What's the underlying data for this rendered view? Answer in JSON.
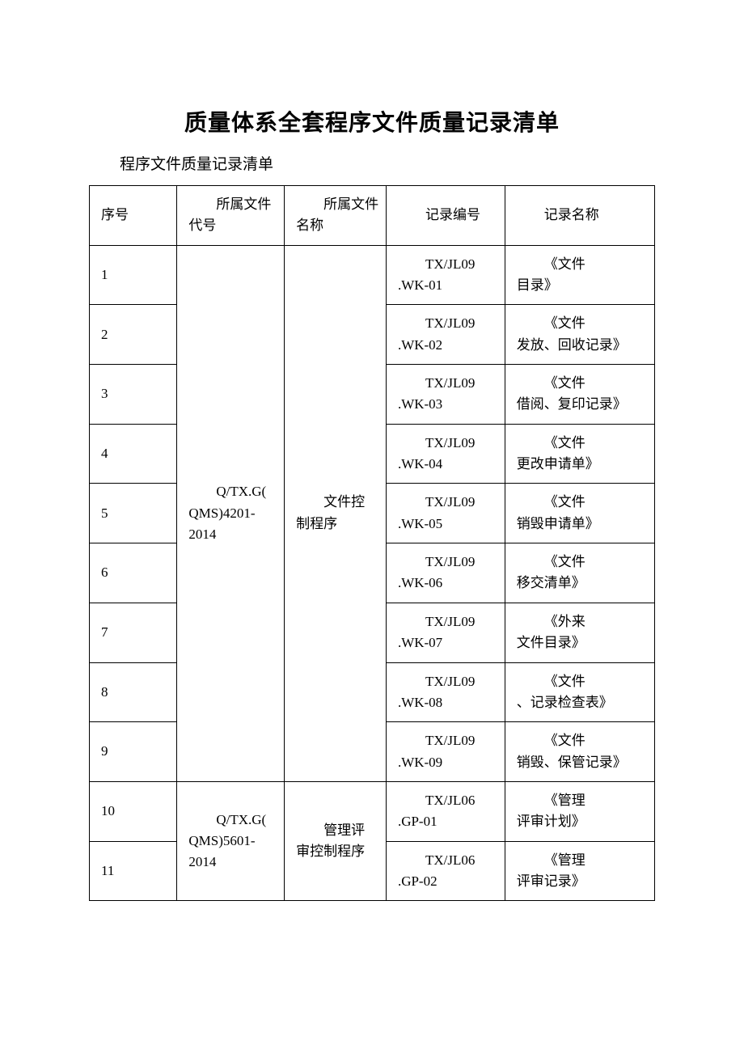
{
  "title": "质量体系全套程序文件质量记录清单",
  "subtitle": "程序文件质量记录清单",
  "headers": {
    "seq": "序号",
    "docCode": "所属文件代号",
    "docName": "所属文件名称",
    "recCode": "记录编号",
    "recName": "记录名称"
  },
  "groups": [
    {
      "code": "Q/TX.G(QMS)4201-2014",
      "name": "文件控制程序",
      "rows": [
        {
          "seq": "1",
          "recCode": "TX/JL09.WK-01",
          "recName": "《文件目录》"
        },
        {
          "seq": "2",
          "recCode": "TX/JL09.WK-02",
          "recName": "《文件发放、回收记录》"
        },
        {
          "seq": "3",
          "recCode": "TX/JL09.WK-03",
          "recName": "《文件借阅、复印记录》"
        },
        {
          "seq": "4",
          "recCode": "TX/JL09.WK-04",
          "recName": "《文件更改申请单》"
        },
        {
          "seq": "5",
          "recCode": "TX/JL09.WK-05",
          "recName": "《文件销毁申请单》"
        },
        {
          "seq": "6",
          "recCode": "TX/JL09.WK-06",
          "recName": "《文件移交清单》"
        },
        {
          "seq": "7",
          "recCode": "TX/JL09.WK-07",
          "recName": "《外来文件目录》"
        },
        {
          "seq": "8",
          "recCode": "TX/JL09.WK-08",
          "recName": "《文件、记录检查表》"
        },
        {
          "seq": "9",
          "recCode": "TX/JL09.WK-09",
          "recName": "《文件销毁、保管记录》"
        }
      ]
    },
    {
      "code": "Q/TX.G(QMS)5601-2014",
      "name": "管理评审控制程序",
      "rows": [
        {
          "seq": "10",
          "recCode": "TX/JL06.GP-01",
          "recName": "《管理评审计划》"
        },
        {
          "seq": "11",
          "recCode": "TX/JL06.GP-02",
          "recName": "《管理评审记录》"
        }
      ]
    }
  ]
}
